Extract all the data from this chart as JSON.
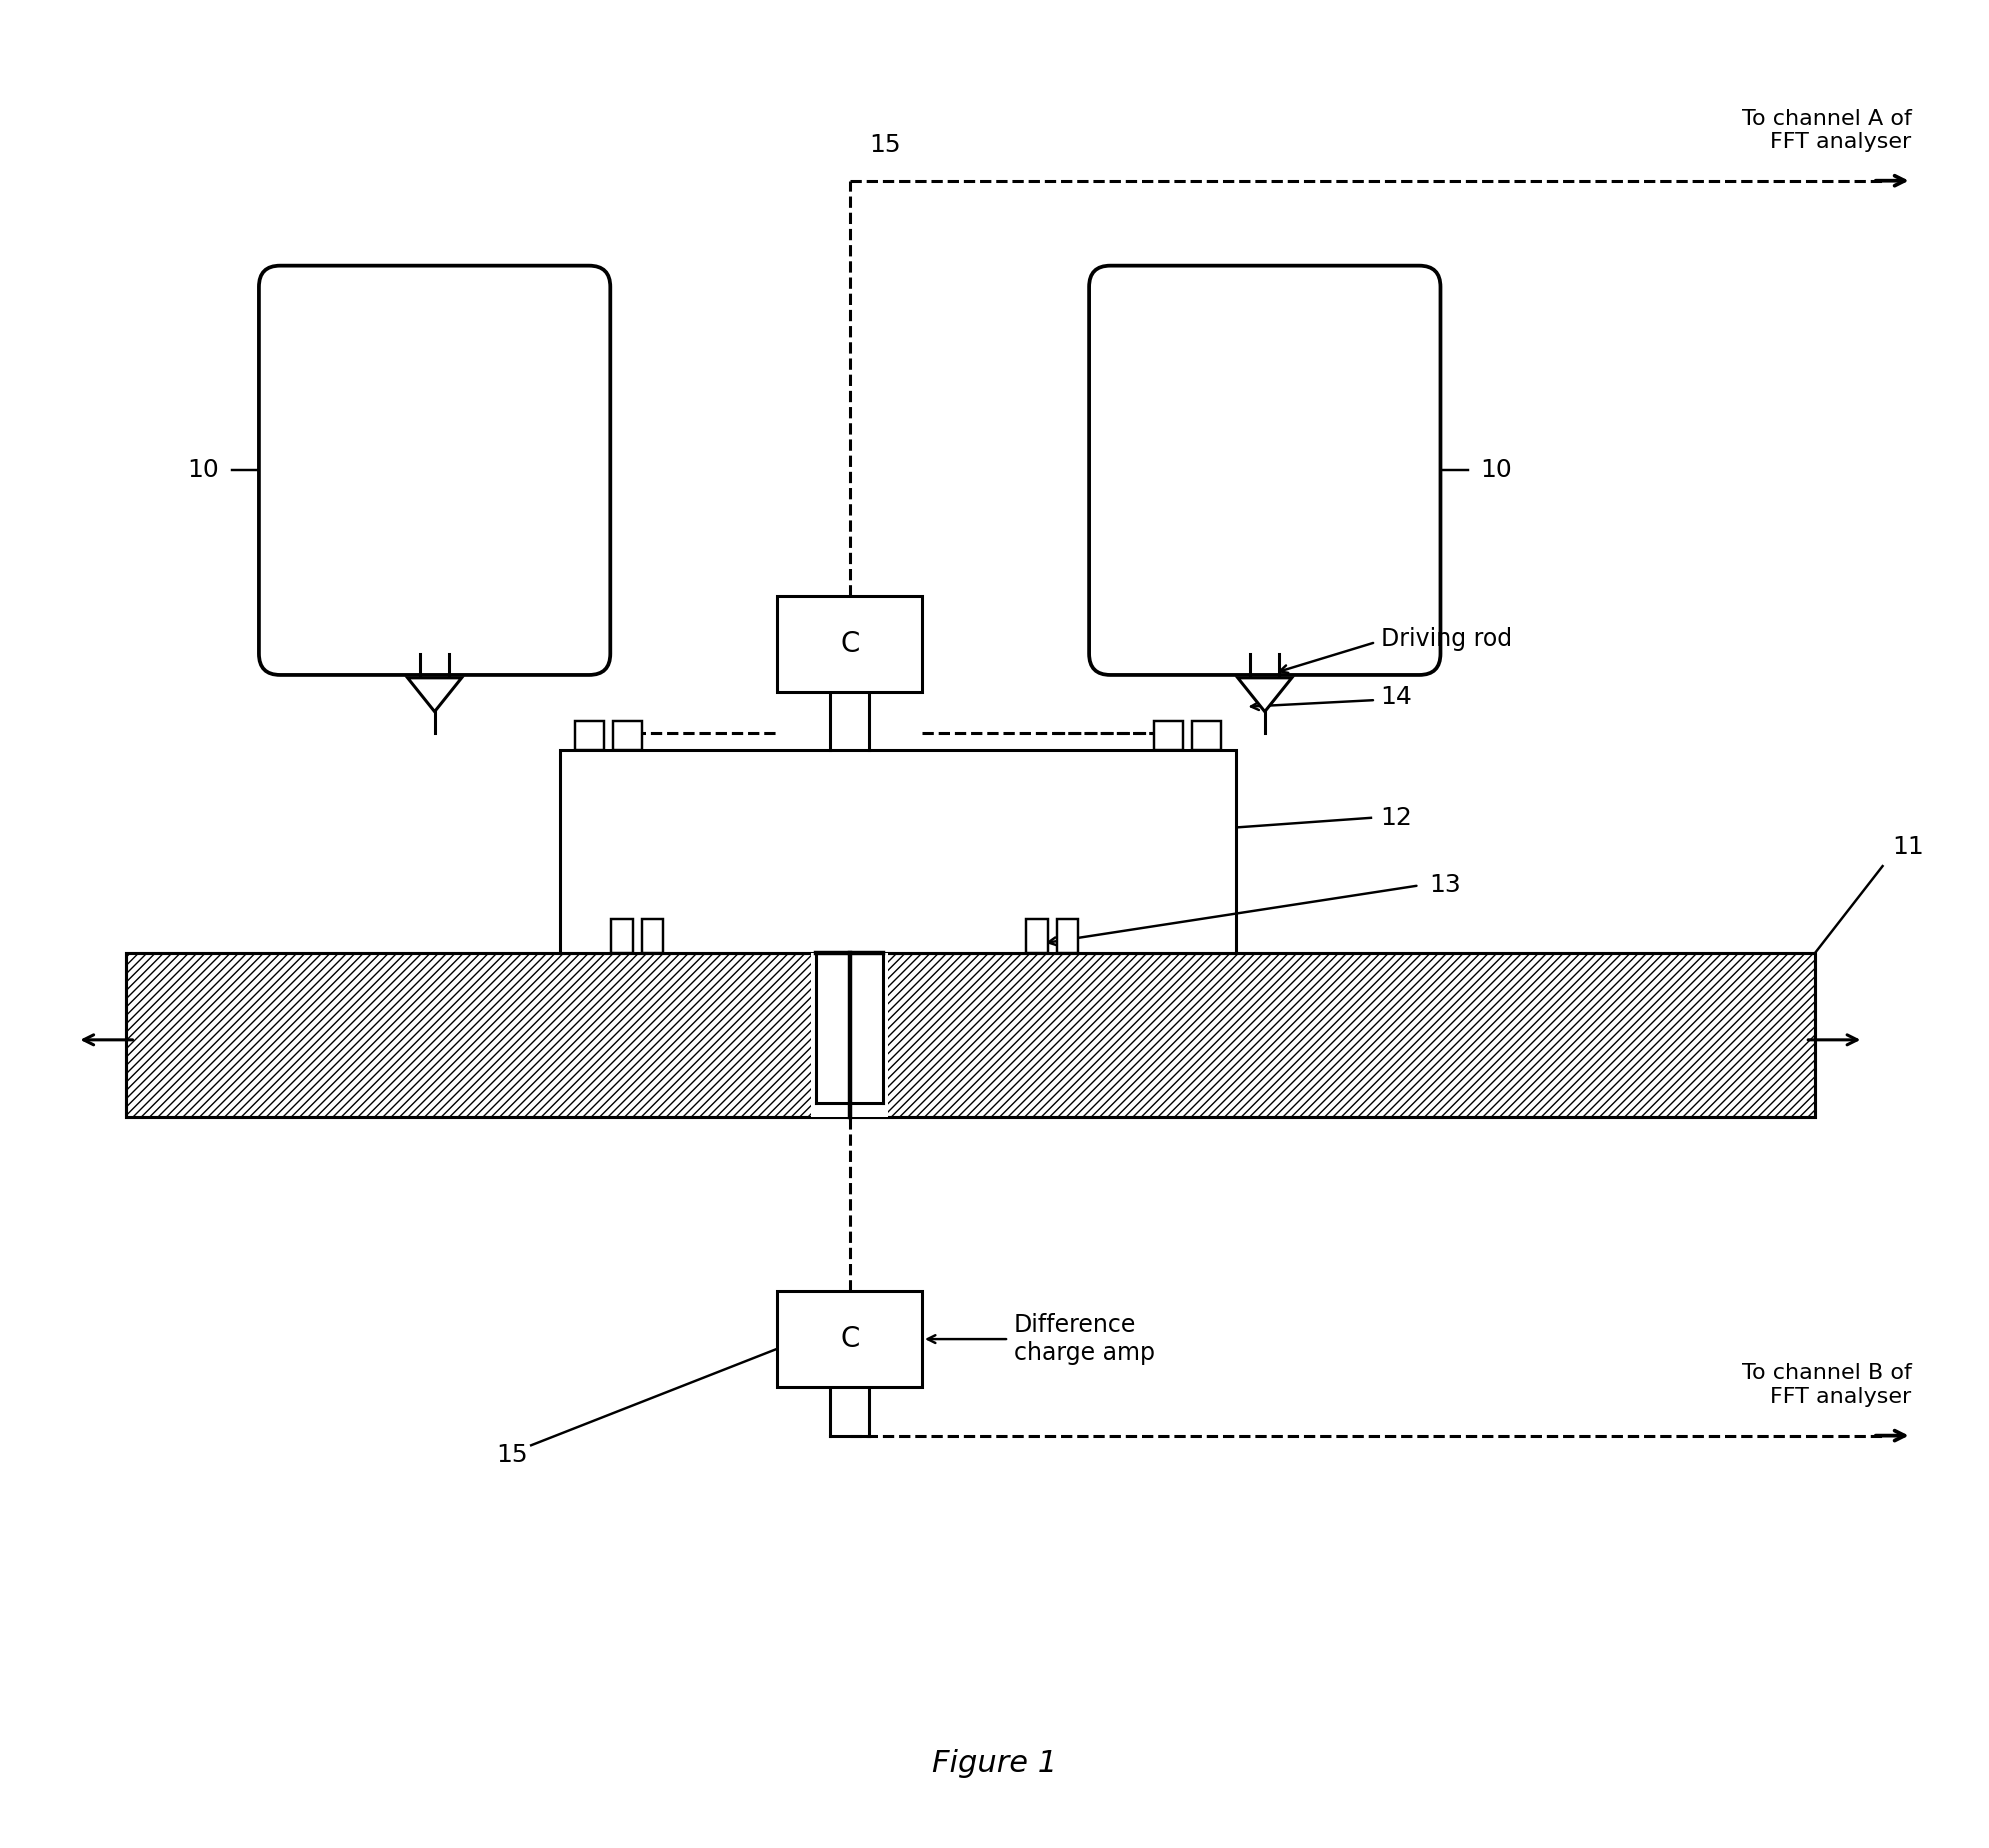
{
  "fig_width": 19.89,
  "fig_height": 18.48,
  "bg_color": "#ffffff",
  "line_color": "#000000",
  "figure_caption": "Figure 1",
  "labels": {
    "10_left": "10",
    "10_right": "10",
    "11": "11",
    "12": "12",
    "13": "13",
    "14": "14",
    "15_top": "15",
    "15_bottom": "15",
    "driving_rod": "Driving rod",
    "difference_charge_amp": "Difference\ncharge amp",
    "channel_A": "To channel A of\nFFT analyser",
    "channel_B": "To channel B of\nFFT analyser"
  },
  "font_size_labels": 18,
  "font_size_caption": 22
}
